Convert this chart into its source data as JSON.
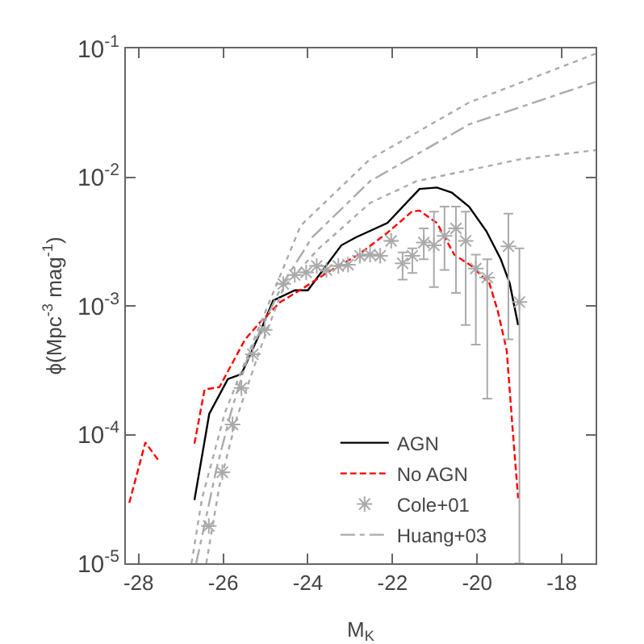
{
  "chart_data": {
    "type": "line",
    "xlabel": "M$_{K}$",
    "ylabel": "ϕ(Mpc$^{-3}$ mag$^{-1}$)",
    "xlim": [
      -28.3,
      -17.2
    ],
    "xticks": [
      -28,
      -26,
      -24,
      -22,
      -20,
      -18
    ],
    "ylim": [
      1e-05,
      0.1
    ],
    "log": "y",
    "yticks": [
      {
        "value": 1e-05,
        "label": "10$^{-5}$"
      },
      {
        "value": 0.0001,
        "label": "10$^{-4}$"
      },
      {
        "value": 0.001,
        "label": "10$^{-3}$"
      },
      {
        "value": 0.01,
        "label": "10$^{-2}$"
      },
      {
        "value": 0.1,
        "label": "10$^{-1}$"
      }
    ],
    "grid": false,
    "legend": "bottom right",
    "series": [
      {
        "name": "AGN",
        "color": "#000000",
        "line_style": "solid",
        "x": [
          -26.68,
          -26.33,
          -25.89,
          -25.57,
          -25.2,
          -24.82,
          -24.31,
          -24.0,
          -23.21,
          -22.87,
          -22.12,
          -21.36,
          -20.95,
          -20.6,
          -20.19,
          -19.78,
          -19.44,
          -19.23,
          -19.03
        ],
        "values": [
          3.1e-05,
          0.000145,
          0.00027,
          0.000295,
          0.00055,
          0.0011,
          0.00132,
          0.00132,
          0.00295,
          0.0034,
          0.0044,
          0.0081,
          0.0083,
          0.0076,
          0.0059,
          0.0038,
          0.0023,
          0.0015,
          0.00071
        ]
      },
      {
        "name": "No AGN",
        "color": "#ff0000",
        "line_style": "dashed",
        "x": [
          -28.22,
          -27.84,
          -27.53,
          -27.1,
          -26.68,
          -26.44,
          -26.09,
          -25.48,
          -25.14,
          -24.65,
          -24.1,
          -23.49,
          -22.8,
          -22.12,
          -21.54,
          -21.36,
          -20.95,
          -20.54,
          -20.13,
          -19.71,
          -19.51,
          -19.3,
          -19.16,
          -19.03
        ],
        "values": [
          2.95e-05,
          8.7e-05,
          6.3e-05,
          null,
          8.5e-05,
          0.000224,
          0.000234,
          0.00055,
          0.00074,
          0.00107,
          0.00138,
          0.00186,
          0.0025,
          0.0037,
          0.0054,
          0.0055,
          0.0044,
          0.0025,
          0.00204,
          0.0015,
          0.00091,
          0.00045,
          0.00011,
          3.2e-05
        ]
      },
      {
        "name": "Cole+01",
        "type": "scatter",
        "color": "#aaaaaa",
        "marker": "cross",
        "x": [
          -26.34,
          -26.02,
          -25.78,
          -25.57,
          -25.3,
          -25.02,
          -24.58,
          -24.31,
          -24.04,
          -23.79,
          -23.56,
          -23.28,
          -23.05,
          -22.77,
          -22.53,
          -22.29,
          -22.03,
          -21.76,
          -21.53,
          -21.26,
          -21.02,
          -20.77,
          -20.5,
          -20.27,
          -20.03,
          -19.76,
          -19.26,
          -19.0
        ],
        "values": [
          1.95e-05,
          5.1e-05,
          0.00012,
          0.00023,
          0.00042,
          0.00065,
          0.00148,
          0.00174,
          0.00182,
          0.00204,
          0.0019,
          0.00204,
          0.00209,
          0.00245,
          0.0025,
          0.00245,
          0.0032,
          0.00214,
          0.00245,
          0.0031,
          0.00295,
          0.0035,
          0.004,
          0.0032,
          0.00195,
          0.00166,
          0.0029,
          0.00107
        ],
        "errors": [
          null,
          null,
          null,
          null,
          null,
          null,
          null,
          null,
          null,
          null,
          null,
          null,
          null,
          null,
          null,
          null,
          null,
          [
            0.0016,
            0.0026
          ],
          [
            0.0018,
            0.0028
          ],
          [
            0.0023,
            0.004
          ],
          [
            0.0014,
            0.0054
          ],
          [
            0.0019,
            0.0059
          ],
          [
            0.00126,
            0.0059
          ],
          [
            0.00071,
            0.0054
          ],
          [
            0.0005,
            0.0025
          ],
          [
            0.00019,
            0.0023
          ],
          [
            0.00055,
            0.0052
          ],
          [
            1e-05,
            0.0028
          ]
        ]
      },
      {
        "name": "Huang+03",
        "color": "#aaaaaa",
        "line_style": "dashdot",
        "x": [
          -26.64,
          -26.5,
          -26.16,
          -25.82,
          -25.41,
          -24.58,
          -23.9,
          -22.53,
          -20.19,
          -17.2
        ],
        "values": [
          1e-05,
          1.62e-05,
          5.4e-05,
          0.000148,
          0.00041,
          0.00151,
          0.0034,
          0.0093,
          0.0257,
          0.055
        ]
      },
      {
        "color": "#aaaaaa",
        "line_style": "dotted",
        "x": [
          -26.75,
          -26.5,
          -25.96,
          -25.27,
          -24.17,
          -22.53,
          -20.19,
          -17.2
        ],
        "values": [
          1e-05,
          3.2e-05,
          0.000148,
          0.00055,
          0.0042,
          0.0138,
          0.038,
          0.091
        ]
      },
      {
        "color": "#aaaaaa",
        "line_style": "dotted",
        "x": [
          -26.4,
          -26.09,
          -25.68,
          -25.14,
          -24.58,
          -23.76,
          -22.53,
          -21.43,
          -18.96,
          -17.2
        ],
        "values": [
          1e-05,
          4e-05,
          0.000135,
          0.00045,
          0.00138,
          0.00275,
          0.0063,
          0.0093,
          0.0138,
          0.0162
        ]
      }
    ]
  }
}
